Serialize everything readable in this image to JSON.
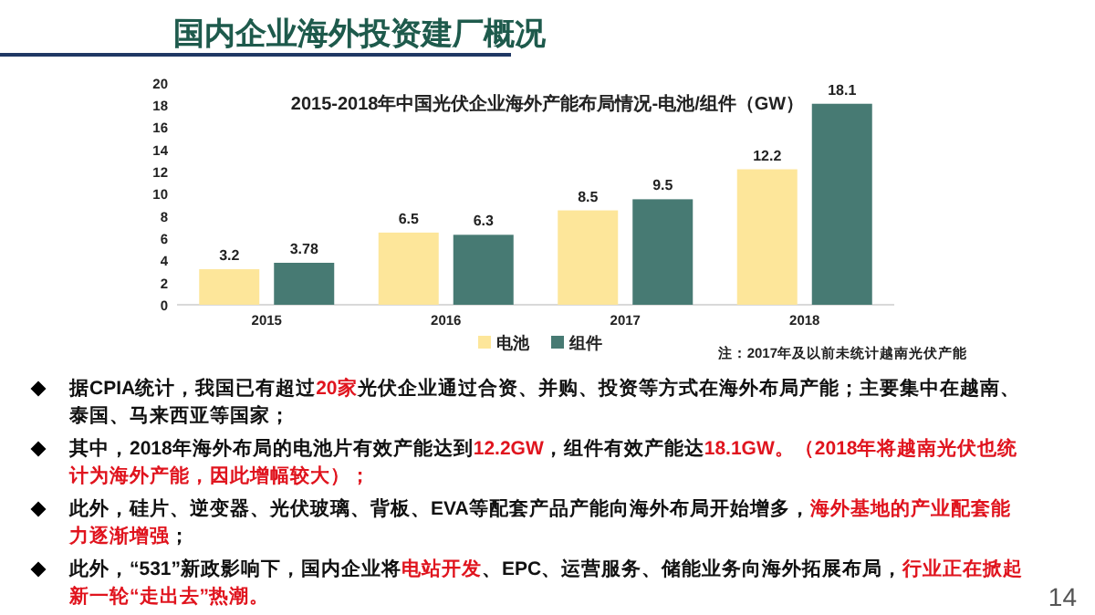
{
  "chart_data": {
    "type": "bar",
    "title": "国内企业海外投资建厂概况",
    "subtitle": "2015-2018年中国光伏企业海外产能布局情况-电池/组件（GW）",
    "categories": [
      "2015",
      "2016",
      "2017",
      "2018"
    ],
    "series": [
      {
        "name": "电池",
        "color": "#fde69a",
        "values": [
          3.2,
          6.5,
          8.5,
          12.2
        ]
      },
      {
        "name": "组件",
        "color": "#477a73",
        "values": [
          3.78,
          6.3,
          9.5,
          18.1
        ]
      }
    ],
    "ylim": [
      0,
      20
    ],
    "yticks": [
      0,
      2,
      4,
      6,
      8,
      10,
      12,
      14,
      16,
      18,
      20
    ],
    "data_labels": true,
    "legend": "bottom",
    "grid": false,
    "annotations": [
      "注：2017年及以前未统计越南光伏产能",
      "据CPIA统计，我国已有超过**20家**光伏企业通过合资、并购、投资等方式在海外布局产能；主要集中在越南、泰国、马来西亚等国家；",
      "其中，2018年海外布局的电池片有效产能达到**12.2GW**，组件有效产能达**18.1GW。（2018年将越南光伏也统计为海外产能，因此增幅较大）；**",
      "此外，硅片、逆变器、光伏玻璃、背板、EVA等配套产品产能向海外布局开始增多，**海外基地的产业配套能力逐渐增强**；",
      "此外，“531”新政影响下，国内企业将**电站开发**、EPC、运营服务、储能业务向海外拓展布局，**行业正在掀起新一轮“走出去”热潮。**",
      "14"
    ]
  }
}
